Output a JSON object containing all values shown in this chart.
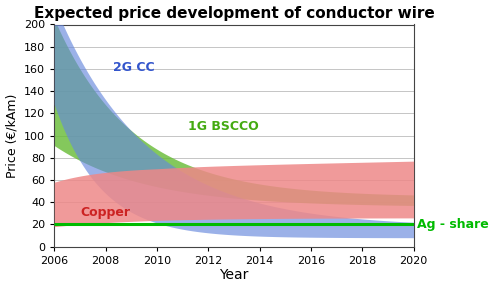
{
  "title": "Expected price development of conductor wire",
  "xlabel": "Year",
  "ylabel": "Price (€/kAm)",
  "xlim": [
    2006,
    2020
  ],
  "ylim": [
    0,
    200
  ],
  "yticks": [
    0,
    20,
    40,
    60,
    80,
    100,
    120,
    140,
    160,
    180,
    200
  ],
  "xticks": [
    2006,
    2008,
    2010,
    2012,
    2014,
    2016,
    2018,
    2020
  ],
  "bg_color": "#ffffff",
  "grid_color": "#bbbbbb",
  "label_2g": "2G CC",
  "label_1g": "1G BSCCO",
  "label_copper": "Copper",
  "label_ag": "Ag - share",
  "color_2g_fill": "#6688dd",
  "color_1g_fill": "#66bb33",
  "color_copper_fill": "#ee8888",
  "color_ag": "#00bb00",
  "title_fontsize": 11,
  "label_fontsize": 9,
  "tick_fontsize": 8
}
